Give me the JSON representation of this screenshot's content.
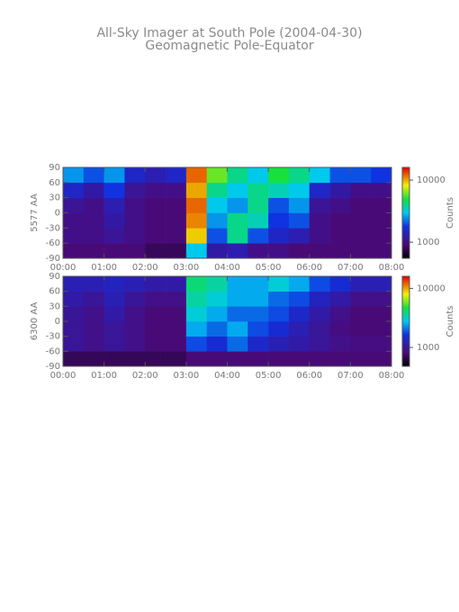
{
  "title": "All-Sky Imager at South Pole (2004-04-30)",
  "subtitle": "Geomagnetic Pole-Equator",
  "chart_data": [
    {
      "type": "heatmap",
      "ylabel": "5577 AA",
      "xlim": [
        0,
        8
      ],
      "ylim": [
        -90,
        90
      ],
      "xticks": [
        {
          "value": 0,
          "label": "00:00"
        },
        {
          "value": 1,
          "label": "01:00"
        },
        {
          "value": 2,
          "label": "02:00"
        },
        {
          "value": 3,
          "label": "03:00"
        },
        {
          "value": 4,
          "label": "04:00"
        },
        {
          "value": 5,
          "label": "05:00"
        },
        {
          "value": 6,
          "label": "06:00"
        },
        {
          "value": 7,
          "label": "07:00"
        },
        {
          "value": 8,
          "label": "08:00"
        }
      ],
      "yticks": [
        90,
        60,
        30,
        0,
        -30,
        -60,
        -90
      ],
      "xbins": [
        0,
        0.5,
        1,
        1.5,
        2,
        2.5,
        3,
        3.5,
        4,
        4.5,
        5,
        5.5,
        6,
        6.5,
        7,
        7.5,
        8
      ],
      "ybins": [
        -90,
        -60,
        -30,
        0,
        30,
        60,
        90
      ],
      "values": [
        [
          900,
          900,
          900,
          900,
          800,
          800,
          3000,
          1200,
          1300,
          1000,
          1000,
          900,
          900,
          900,
          900,
          900
        ],
        [
          1000,
          1000,
          1100,
          1000,
          900,
          900,
          9000,
          2000,
          4000,
          2000,
          1500,
          1300,
          1000,
          900,
          900,
          900
        ],
        [
          1000,
          1000,
          1200,
          1000,
          900,
          900,
          11000,
          2500,
          4000,
          3500,
          1800,
          2000,
          1000,
          900,
          900,
          900
        ],
        [
          1100,
          1000,
          1300,
          1000,
          900,
          900,
          12000,
          3000,
          2500,
          4000,
          2000,
          2500,
          1100,
          1000,
          900,
          900
        ],
        [
          1500,
          1200,
          1800,
          1100,
          1000,
          1000,
          10000,
          4000,
          3000,
          4000,
          3500,
          3000,
          1500,
          1200,
          1000,
          1000
        ],
        [
          2500,
          2000,
          2500,
          1500,
          1300,
          1500,
          12000,
          6000,
          4000,
          3000,
          5000,
          4000,
          3000,
          2000,
          2000,
          1800
        ]
      ],
      "colorbar": {
        "label": "Counts",
        "log": true,
        "clim": [
          550,
          16000
        ],
        "ticks": [
          1000,
          10000
        ]
      }
    },
    {
      "type": "heatmap",
      "ylabel": "6300 AA",
      "xlim": [
        0,
        8
      ],
      "ylim": [
        -90,
        90
      ],
      "xticks": [
        {
          "value": 0,
          "label": "00:00"
        },
        {
          "value": 1,
          "label": "01:00"
        },
        {
          "value": 2,
          "label": "02:00"
        },
        {
          "value": 3,
          "label": "03:00"
        },
        {
          "value": 4,
          "label": "04:00"
        },
        {
          "value": 5,
          "label": "05:00"
        },
        {
          "value": 6,
          "label": "06:00"
        },
        {
          "value": 7,
          "label": "07:00"
        },
        {
          "value": 8,
          "label": "08:00"
        }
      ],
      "yticks": [
        90,
        60,
        30,
        0,
        -30,
        -60,
        -90
      ],
      "xbins": [
        0,
        0.5,
        1,
        1.5,
        2,
        2.5,
        3,
        3.5,
        4,
        4.5,
        5,
        5.5,
        6,
        6.5,
        7,
        7.5,
        8
      ],
      "ybins": [
        -90,
        -60,
        -30,
        0,
        30,
        60,
        90
      ],
      "values": [
        [
          700,
          700,
          700,
          700,
          700,
          700,
          800,
          800,
          800,
          800,
          800,
          800,
          800,
          800,
          800,
          800
        ],
        [
          1000,
          900,
          1000,
          900,
          800,
          800,
          1800,
          1500,
          2000,
          1400,
          1200,
          1100,
          1000,
          900,
          850,
          850
        ],
        [
          1000,
          900,
          1000,
          900,
          800,
          800,
          2500,
          2000,
          2500,
          1800,
          1500,
          1200,
          1000,
          850,
          800,
          800
        ],
        [
          1000,
          900,
          1100,
          900,
          800,
          800,
          3000,
          2500,
          2000,
          2000,
          1800,
          1400,
          1100,
          900,
          800,
          800
        ],
        [
          1100,
          1000,
          1200,
          1000,
          900,
          900,
          3500,
          3000,
          2500,
          2500,
          2000,
          1800,
          1300,
          1100,
          900,
          900
        ],
        [
          1200,
          1200,
          1300,
          1200,
          1100,
          1100,
          4000,
          3500,
          2500,
          2500,
          3000,
          2500,
          1800,
          1500,
          1200,
          1200
        ]
      ],
      "colorbar": {
        "label": "Counts",
        "log": true,
        "clim": [
          480,
          16000
        ],
        "ticks": [
          1000,
          10000
        ]
      }
    }
  ]
}
